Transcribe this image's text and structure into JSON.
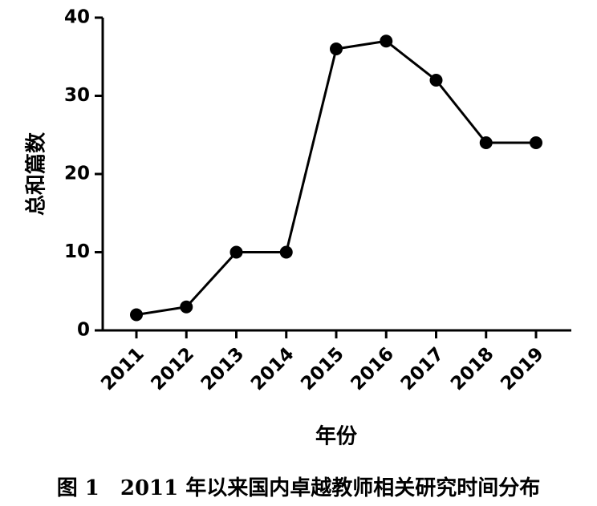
{
  "chart_data": {
    "type": "line",
    "categories": [
      "2011",
      "2012",
      "2013",
      "2014",
      "2015",
      "2016",
      "2017",
      "2018",
      "2019"
    ],
    "values": [
      2,
      3,
      10,
      10,
      36,
      37,
      32,
      24,
      24
    ],
    "color": "#000000",
    "ylim": [
      0,
      40
    ],
    "yticks": [
      0,
      10,
      20,
      30,
      40
    ],
    "y_label": "总和篇数",
    "x_label": "年份",
    "caption": "图 1　2011 年以来国内卓越教师相关研究时间分布"
  }
}
